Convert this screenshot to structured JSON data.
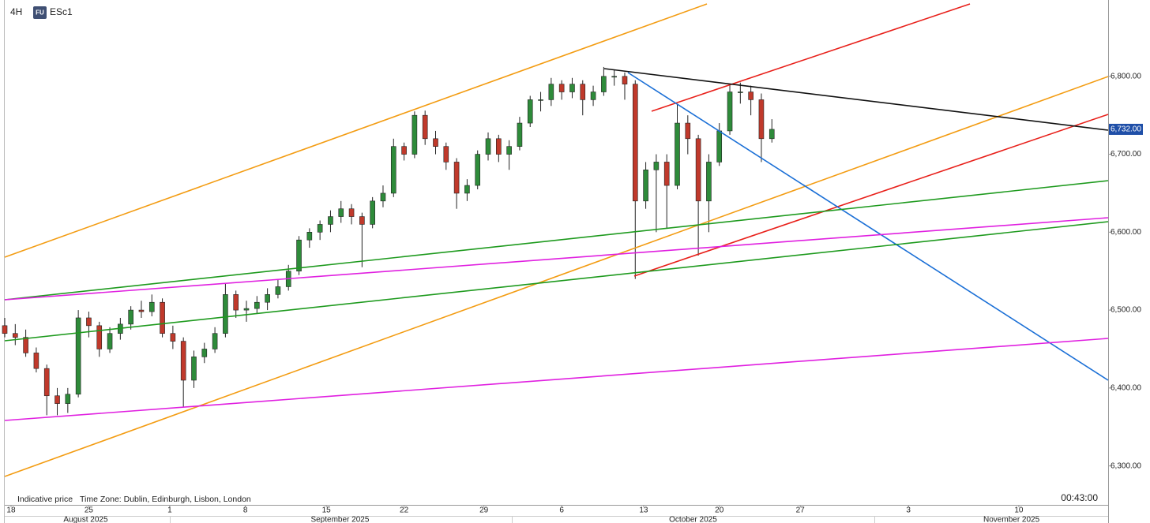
{
  "chart_data": {
    "type": "candlestick",
    "timeframe": "4H",
    "badge": "FU",
    "symbol": "ESc1",
    "note": "Indicative price",
    "timezone": "Time Zone: Dublin, Edinburgh, Lisbon, London",
    "clock": "00:43:00",
    "up_color": "#2e8b3a",
    "down_color": "#c0392b",
    "ylim": [
      6250,
      6898
    ],
    "yticks": [
      {
        "value": 6300,
        "label": "6,300.00"
      },
      {
        "value": 6400,
        "label": "6,400.00"
      },
      {
        "value": 6500,
        "label": "6,500.00"
      },
      {
        "value": 6600,
        "label": "6,600.00"
      },
      {
        "value": 6700,
        "label": "6,700.00"
      },
      {
        "value": 6800,
        "label": "6,800.00"
      }
    ],
    "last_price": {
      "value": 6732,
      "label": "6,732.00"
    },
    "xlim": [
      0,
      105
    ],
    "xticks": [
      {
        "value": 0.6,
        "label": "18"
      },
      {
        "value": 8,
        "label": "25"
      },
      {
        "value": 15.7,
        "label": "1"
      },
      {
        "value": 22.9,
        "label": "8"
      },
      {
        "value": 30.6,
        "label": "15"
      },
      {
        "value": 38,
        "label": "22"
      },
      {
        "value": 45.6,
        "label": "29"
      },
      {
        "value": 53,
        "label": "6"
      },
      {
        "value": 60.8,
        "label": "13"
      },
      {
        "value": 68,
        "label": "20"
      },
      {
        "value": 75.7,
        "label": "27"
      },
      {
        "value": 86,
        "label": "3"
      },
      {
        "value": 96.5,
        "label": "10"
      }
    ],
    "months": [
      {
        "value": 7.7,
        "label": "August 2025"
      },
      {
        "value": 31.9,
        "label": "September 2025"
      },
      {
        "value": 65.5,
        "label": "October 2025"
      },
      {
        "value": 95.8,
        "label": "November 2025"
      }
    ],
    "candles": [
      [
        6480,
        6490,
        6465,
        6470
      ],
      [
        6470,
        6482,
        6455,
        6465
      ],
      [
        6465,
        6475,
        6440,
        6445
      ],
      [
        6445,
        6452,
        6420,
        6425
      ],
      [
        6425,
        6430,
        6365,
        6390
      ],
      [
        6390,
        6400,
        6365,
        6380
      ],
      [
        6380,
        6400,
        6368,
        6392
      ],
      [
        6392,
        6500,
        6388,
        6490
      ],
      [
        6490,
        6498,
        6465,
        6480
      ],
      [
        6480,
        6485,
        6440,
        6450
      ],
      [
        6450,
        6478,
        6445,
        6470
      ],
      [
        6470,
        6490,
        6462,
        6482
      ],
      [
        6482,
        6505,
        6475,
        6500
      ],
      [
        6500,
        6512,
        6490,
        6498
      ],
      [
        6498,
        6520,
        6492,
        6510
      ],
      [
        6510,
        6515,
        6465,
        6470
      ],
      [
        6470,
        6480,
        6450,
        6460
      ],
      [
        6460,
        6465,
        6375,
        6410
      ],
      [
        6410,
        6448,
        6400,
        6440
      ],
      [
        6440,
        6458,
        6432,
        6450
      ],
      [
        6450,
        6478,
        6445,
        6470
      ],
      [
        6470,
        6535,
        6465,
        6520
      ],
      [
        6520,
        6525,
        6490,
        6500
      ],
      [
        6500,
        6512,
        6485,
        6502
      ],
      [
        6502,
        6518,
        6495,
        6510
      ],
      [
        6510,
        6528,
        6500,
        6520
      ],
      [
        6520,
        6540,
        6515,
        6530
      ],
      [
        6530,
        6558,
        6525,
        6550
      ],
      [
        6550,
        6595,
        6545,
        6590
      ],
      [
        6590,
        6605,
        6580,
        6600
      ],
      [
        6600,
        6615,
        6590,
        6610
      ],
      [
        6610,
        6628,
        6600,
        6620
      ],
      [
        6620,
        6640,
        6612,
        6630
      ],
      [
        6630,
        6636,
        6610,
        6620
      ],
      [
        6620,
        6625,
        6555,
        6610
      ],
      [
        6610,
        6645,
        6605,
        6640
      ],
      [
        6640,
        6660,
        6632,
        6650
      ],
      [
        6650,
        6720,
        6645,
        6710
      ],
      [
        6710,
        6715,
        6692,
        6700
      ],
      [
        6700,
        6755,
        6695,
        6750
      ],
      [
        6750,
        6756,
        6712,
        6720
      ],
      [
        6720,
        6730,
        6700,
        6710
      ],
      [
        6710,
        6715,
        6680,
        6690
      ],
      [
        6690,
        6695,
        6630,
        6650
      ],
      [
        6650,
        6668,
        6640,
        6660
      ],
      [
        6660,
        6705,
        6655,
        6700
      ],
      [
        6700,
        6728,
        6692,
        6720
      ],
      [
        6720,
        6725,
        6690,
        6700
      ],
      [
        6700,
        6718,
        6680,
        6710
      ],
      [
        6710,
        6748,
        6705,
        6740
      ],
      [
        6740,
        6775,
        6735,
        6770
      ],
      [
        6770,
        6780,
        6755,
        6770
      ],
      [
        6770,
        6798,
        6762,
        6790
      ],
      [
        6790,
        6795,
        6770,
        6780
      ],
      [
        6780,
        6798,
        6772,
        6790
      ],
      [
        6790,
        6795,
        6750,
        6770
      ],
      [
        6770,
        6788,
        6762,
        6780
      ],
      [
        6780,
        6812,
        6775,
        6800
      ],
      [
        6800,
        6808,
        6788,
        6800
      ],
      [
        6800,
        6805,
        6770,
        6790
      ],
      [
        6790,
        6795,
        6540,
        6640
      ],
      [
        6640,
        6690,
        6630,
        6680
      ],
      [
        6680,
        6700,
        6600,
        6690
      ],
      [
        6690,
        6700,
        6605,
        6660
      ],
      [
        6660,
        6765,
        6655,
        6740
      ],
      [
        6740,
        6750,
        6700,
        6720
      ],
      [
        6720,
        6725,
        6570,
        6640
      ],
      [
        6640,
        6700,
        6600,
        6690
      ],
      [
        6690,
        6740,
        6685,
        6730
      ],
      [
        6730,
        6790,
        6725,
        6780
      ],
      [
        6780,
        6792,
        6765,
        6780
      ],
      [
        6780,
        6788,
        6750,
        6770
      ],
      [
        6770,
        6778,
        6690,
        6720
      ],
      [
        6720,
        6745,
        6715,
        6732
      ]
    ]
  }
}
